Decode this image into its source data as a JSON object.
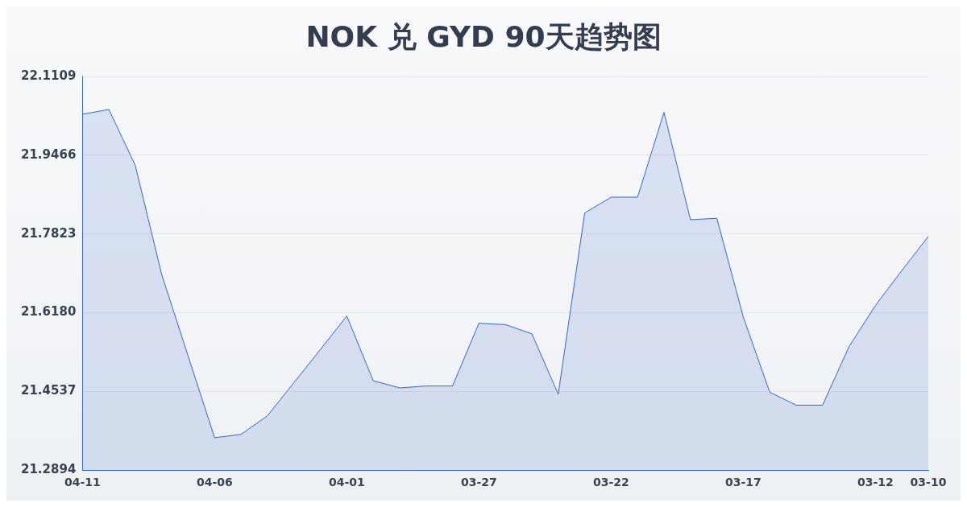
{
  "chart_data": {
    "type": "area",
    "title": "NOK 兑 GYD 90天趋势图",
    "categories": [
      "04-11",
      null,
      null,
      null,
      null,
      "04-06",
      null,
      null,
      null,
      null,
      "04-01",
      null,
      null,
      null,
      null,
      "03-27",
      null,
      null,
      null,
      null,
      "03-22",
      null,
      null,
      null,
      null,
      "03-17",
      null,
      null,
      null,
      null,
      "03-12",
      null,
      "03-10"
    ],
    "series": [
      {
        "color": "#3566cc",
        "values": [
          22.032,
          22.042,
          21.925,
          21.697,
          21.527,
          21.357,
          21.364,
          21.403,
          21.472,
          21.541,
          21.611,
          21.476,
          21.461,
          21.465,
          21.465,
          21.596,
          21.593,
          21.574,
          21.448,
          21.826,
          21.859,
          21.859,
          22.036,
          21.812,
          21.815,
          21.609,
          21.452,
          21.425,
          21.425,
          21.547,
          21.633,
          21.706,
          21.777
        ]
      }
    ],
    "ylim": [
      21.2894,
      22.1109
    ],
    "yticks": [
      21.2894,
      21.4537,
      {
        "value": 21.618,
        "label": "21.6180"
      },
      21.7823,
      21.9466,
      22.1109
    ],
    "grid": "y",
    "legend": false,
    "marker": "none",
    "line_style": "solid"
  }
}
